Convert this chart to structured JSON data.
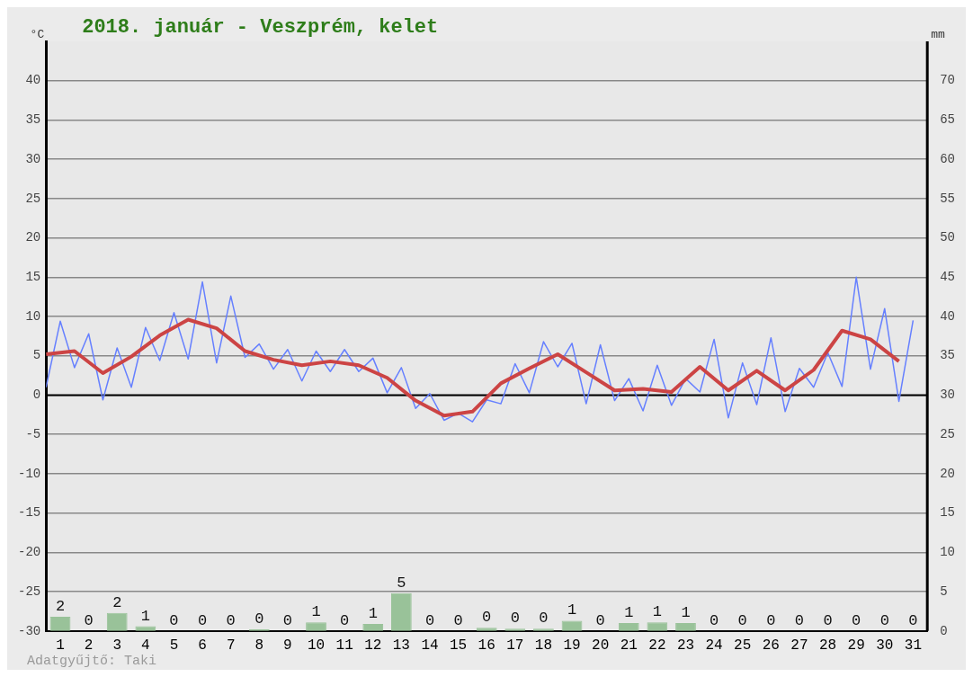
{
  "chart_data": {
    "type": "line",
    "title": "2018. január - Veszprém, kelet",
    "ylabel": "°C",
    "y2label": "mm",
    "annotations": [
      "Adatgyűjtő: Taki"
    ],
    "xlim": [
      0.5,
      31.5
    ],
    "xticks": [
      1,
      2,
      3,
      4,
      5,
      6,
      7,
      8,
      9,
      10,
      11,
      12,
      13,
      14,
      15,
      16,
      17,
      18,
      19,
      20,
      21,
      22,
      23,
      24,
      25,
      26,
      27,
      28,
      29,
      30,
      31
    ],
    "ylim": [
      -30,
      45
    ],
    "yticks": [
      -30,
      -25,
      -20,
      -15,
      -10,
      -5,
      0,
      5,
      10,
      15,
      20,
      25,
      30,
      35,
      40
    ],
    "y2lim": [
      0,
      75
    ],
    "y2ticks": [
      0,
      5,
      10,
      15,
      20,
      25,
      30,
      35,
      40,
      45,
      50,
      55,
      60,
      65,
      70
    ],
    "grid": "y",
    "ref_lines": [
      {
        "axis": "y",
        "value": 0,
        "color": "#000000"
      }
    ],
    "series": [
      {
        "type": "bar",
        "axis": "y2",
        "color": "#99c299",
        "x": [
          1,
          2,
          3,
          4,
          5,
          6,
          7,
          8,
          9,
          10,
          11,
          12,
          13,
          14,
          15,
          16,
          17,
          18,
          19,
          20,
          21,
          22,
          23,
          24,
          25,
          26,
          27,
          28,
          29,
          30,
          31
        ],
        "values": [
          1.8,
          0,
          2.3,
          0.6,
          0,
          0,
          0,
          0.2,
          0,
          1.1,
          0,
          0.9,
          4.8,
          0,
          0,
          0.4,
          0.3,
          0.3,
          1.3,
          0,
          1.0,
          1.1,
          1.0,
          0,
          0,
          0,
          0,
          0,
          0,
          0,
          0
        ],
        "value_labels": [
          "2",
          "0",
          "2",
          "1",
          "0",
          "0",
          "0",
          "0",
          "0",
          "1",
          "0",
          "1",
          "5",
          "0",
          "0",
          "0",
          "0",
          "0",
          "1",
          "0",
          "1",
          "1",
          "1",
          "0",
          "0",
          "0",
          "0",
          "0",
          "0",
          "0",
          "0"
        ]
      },
      {
        "color": "#6680ff",
        "x": [
          0.5,
          1,
          1.5,
          2,
          2.5,
          3,
          3.5,
          4,
          4.5,
          5,
          5.5,
          6,
          6.5,
          7,
          7.5,
          8,
          8.5,
          9,
          9.5,
          10,
          10.5,
          11,
          11.5,
          12,
          12.5,
          13,
          13.5,
          14,
          14.5,
          15,
          15.5,
          16,
          16.5,
          17,
          17.5,
          18,
          18.5,
          19,
          19.5,
          20,
          20.5,
          21,
          21.5,
          22,
          22.5,
          23,
          23.5,
          24,
          24.5,
          25,
          25.5,
          26,
          26.5,
          27,
          27.5,
          28,
          28.5,
          29,
          29.5,
          30,
          30.5,
          31
        ],
        "values": [
          1.0,
          9.4,
          3.5,
          7.8,
          -0.6,
          6.0,
          1.0,
          8.6,
          4.4,
          10.5,
          4.6,
          14.4,
          4.1,
          12.6,
          4.8,
          6.5,
          3.3,
          5.8,
          1.8,
          5.6,
          3.0,
          5.8,
          3.0,
          4.7,
          0.3,
          3.5,
          -1.7,
          0.2,
          -3.2,
          -2.3,
          -3.4,
          -0.6,
          -1.1,
          4.0,
          0.3,
          6.8,
          3.6,
          6.6,
          -1.1,
          6.4,
          -0.7,
          2.1,
          -2.0,
          3.8,
          -1.3,
          2.1,
          0.4,
          7.1,
          -2.9,
          4.1,
          -1.2,
          7.3,
          -2.1,
          3.4,
          1.0,
          5.4,
          1.1,
          15.0,
          3.3,
          11.0,
          -0.8,
          9.5
        ]
      },
      {
        "color": "#cc4444",
        "x": [
          0.5,
          1.5,
          2.5,
          3.5,
          4.5,
          5.5,
          6.5,
          7.5,
          8.5,
          9.5,
          10.5,
          11.5,
          12.5,
          13.5,
          14.5,
          15.5,
          16.5,
          17.5,
          18.5,
          19.5,
          20.5,
          21.5,
          22.5,
          23.5,
          24.5,
          25.5,
          26.5,
          27.5,
          28.5,
          29.5,
          30.5
        ],
        "values": [
          5.2,
          5.6,
          2.8,
          4.9,
          7.6,
          9.6,
          8.5,
          5.6,
          4.5,
          3.8,
          4.3,
          3.8,
          2.2,
          -0.7,
          -2.6,
          -2.1,
          1.5,
          3.4,
          5.2,
          2.9,
          0.6,
          0.8,
          0.4,
          3.6,
          0.6,
          3.1,
          0.6,
          3.2,
          8.2,
          7.1,
          4.3
        ]
      }
    ]
  }
}
